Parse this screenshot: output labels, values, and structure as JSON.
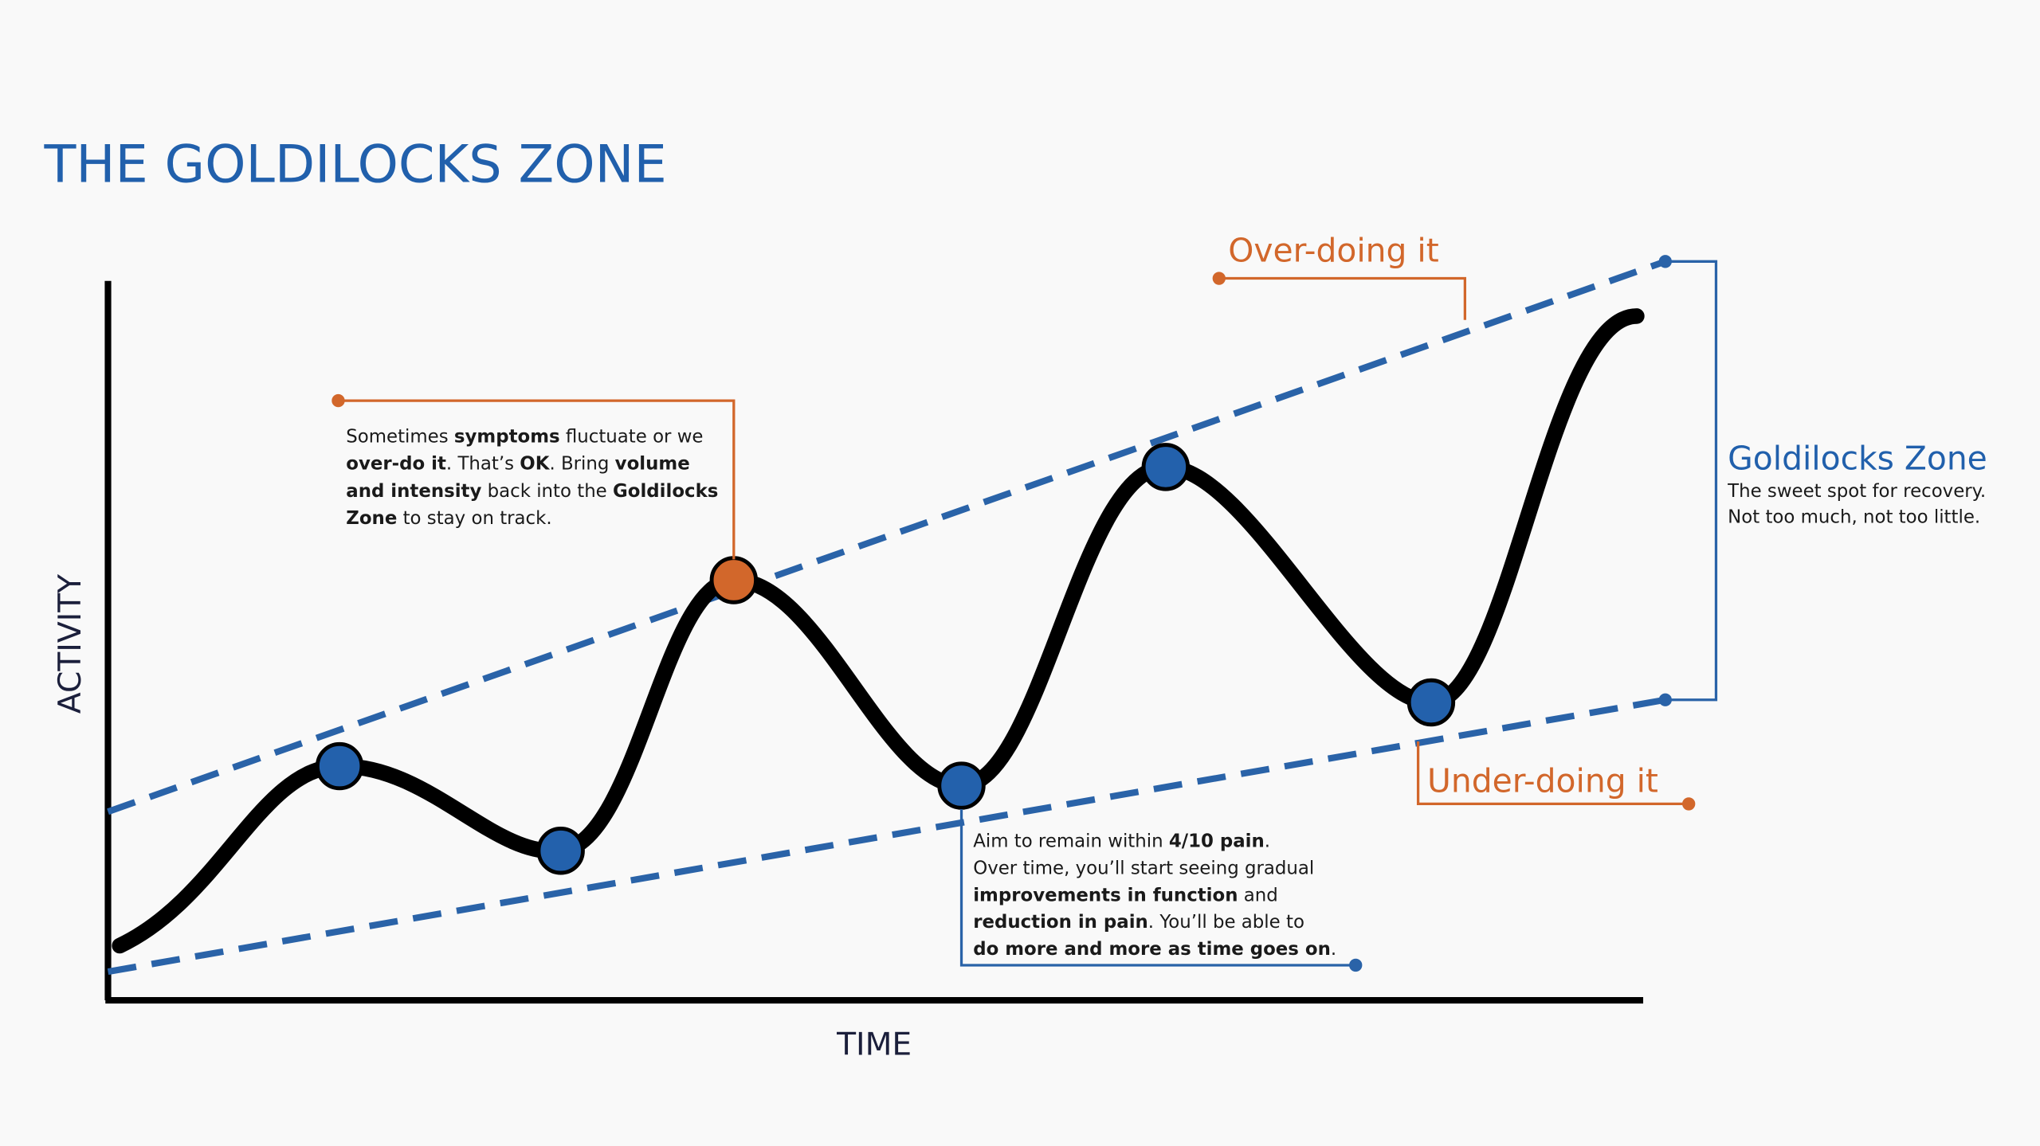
{
  "title": "THE GOLDILOCKS ZONE",
  "y_axis_label": "ACTIVITY",
  "x_axis_label": "TIME",
  "over_label": "Over-doing it",
  "under_label": "Under-doing it",
  "zone": {
    "title": "Goldilocks Zone",
    "lines": [
      "The sweet spot for recovery.",
      "Not too much, not too little."
    ]
  },
  "notes": [
    {
      "lines": [
        [
          {
            "text": "Sometimes "
          },
          {
            "text": "symptoms",
            "bold": true
          },
          {
            "text": " fluctuate or we"
          }
        ],
        [
          {
            "text": "over-do it",
            "bold": true
          },
          {
            "text": ". That’s "
          },
          {
            "text": "OK",
            "bold": true
          },
          {
            "text": ". Bring "
          },
          {
            "text": "volume",
            "bold": true
          }
        ],
        [
          {
            "text": "and intensity",
            "bold": true
          },
          {
            "text": " back into the "
          },
          {
            "text": "Goldilocks",
            "bold": true
          }
        ],
        [
          {
            "text": "Zone",
            "bold": true
          },
          {
            "text": " to stay on track."
          }
        ]
      ]
    },
    {
      "lines": [
        [
          {
            "text": "Aim to remain within "
          },
          {
            "text": "4/10 pain",
            "bold": true
          },
          {
            "text": "."
          }
        ],
        [
          {
            "text": "Over time, you’ll start seeing gradual"
          }
        ],
        [
          {
            "text": "improvements in function",
            "bold": true
          },
          {
            "text": " and"
          }
        ],
        [
          {
            "text": "reduction in pain",
            "bold": true
          },
          {
            "text": ". You’ll be able to"
          }
        ],
        [
          {
            "text": "do more and more as time goes on",
            "bold": true
          },
          {
            "text": "."
          }
        ]
      ]
    }
  ]
}
